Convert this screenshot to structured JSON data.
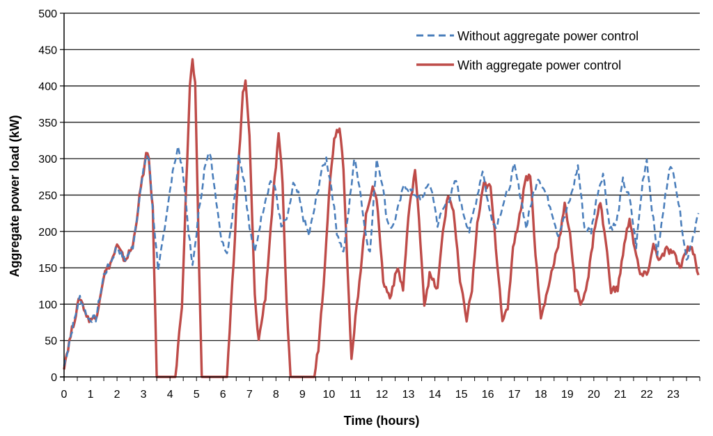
{
  "chart_data": {
    "type": "line",
    "title": "",
    "xlabel": "Time (hours)",
    "ylabel": "Aggregate power load (kW)",
    "xlim": [
      0,
      24
    ],
    "ylim": [
      0,
      500
    ],
    "x_ticks": [
      "0",
      "1",
      "2",
      "3",
      "4",
      "5",
      "6",
      "7",
      "8",
      "9",
      "10",
      "11",
      "12",
      "13",
      "14",
      "15",
      "16",
      "17",
      "18",
      "19",
      "20",
      "21",
      "22",
      "23"
    ],
    "y_ticks": [
      "0",
      "50",
      "100",
      "150",
      "200",
      "250",
      "300",
      "350",
      "400",
      "450",
      "500"
    ],
    "grid": "horizontal",
    "legend_position": "top-right",
    "series": [
      {
        "name": "Without aggregate power control",
        "style": "dashed",
        "color": "#4a7ebb",
        "points": [
          [
            0.0,
            15
          ],
          [
            0.3,
            65
          ],
          [
            0.6,
            110
          ],
          [
            0.9,
            80
          ],
          [
            1.2,
            80
          ],
          [
            1.5,
            140
          ],
          [
            1.8,
            160
          ],
          [
            2.0,
            180
          ],
          [
            2.3,
            160
          ],
          [
            2.6,
            180
          ],
          [
            2.9,
            260
          ],
          [
            3.1,
            305
          ],
          [
            3.2,
            300
          ],
          [
            3.35,
            230
          ],
          [
            3.55,
            150
          ],
          [
            3.8,
            200
          ],
          [
            4.1,
            285
          ],
          [
            4.3,
            315
          ],
          [
            4.5,
            280
          ],
          [
            4.7,
            200
          ],
          [
            4.85,
            150
          ],
          [
            5.05,
            215
          ],
          [
            5.3,
            285
          ],
          [
            5.5,
            310
          ],
          [
            5.7,
            260
          ],
          [
            5.9,
            195
          ],
          [
            6.15,
            170
          ],
          [
            6.35,
            220
          ],
          [
            6.6,
            305
          ],
          [
            6.8,
            270
          ],
          [
            7.0,
            205
          ],
          [
            7.2,
            170
          ],
          [
            7.4,
            210
          ],
          [
            7.6,
            245
          ],
          [
            7.8,
            270
          ],
          [
            8.0,
            255
          ],
          [
            8.2,
            205
          ],
          [
            8.45,
            220
          ],
          [
            8.65,
            265
          ],
          [
            8.85,
            250
          ],
          [
            9.05,
            215
          ],
          [
            9.25,
            195
          ],
          [
            9.5,
            240
          ],
          [
            9.7,
            280
          ],
          [
            9.9,
            300
          ],
          [
            10.1,
            260
          ],
          [
            10.3,
            200
          ],
          [
            10.55,
            170
          ],
          [
            10.75,
            230
          ],
          [
            10.95,
            300
          ],
          [
            11.15,
            265
          ],
          [
            11.35,
            205
          ],
          [
            11.55,
            170
          ],
          [
            11.8,
            300
          ],
          [
            12.0,
            270
          ],
          [
            12.2,
            215
          ],
          [
            12.4,
            205
          ],
          [
            12.6,
            230
          ],
          [
            12.85,
            265
          ],
          [
            13.1,
            255
          ],
          [
            13.3,
            250
          ],
          [
            13.5,
            240
          ],
          [
            13.7,
            265
          ],
          [
            13.9,
            255
          ],
          [
            14.1,
            210
          ],
          [
            14.3,
            230
          ],
          [
            14.55,
            245
          ],
          [
            14.8,
            270
          ],
          [
            15.0,
            235
          ],
          [
            15.3,
            200
          ],
          [
            15.6,
            250
          ],
          [
            15.8,
            285
          ],
          [
            16.05,
            230
          ],
          [
            16.3,
            205
          ],
          [
            16.55,
            235
          ],
          [
            16.8,
            260
          ],
          [
            17.0,
            290
          ],
          [
            17.2,
            255
          ],
          [
            17.45,
            205
          ],
          [
            17.7,
            250
          ],
          [
            17.9,
            275
          ],
          [
            18.15,
            255
          ],
          [
            18.4,
            230
          ],
          [
            18.65,
            195
          ],
          [
            18.9,
            220
          ],
          [
            19.15,
            250
          ],
          [
            19.4,
            290
          ],
          [
            19.65,
            205
          ],
          [
            19.9,
            200
          ],
          [
            20.15,
            255
          ],
          [
            20.35,
            280
          ],
          [
            20.6,
            205
          ],
          [
            20.85,
            210
          ],
          [
            21.1,
            270
          ],
          [
            21.35,
            245
          ],
          [
            21.6,
            180
          ],
          [
            21.85,
            270
          ],
          [
            22.0,
            300
          ],
          [
            22.2,
            230
          ],
          [
            22.4,
            170
          ],
          [
            22.6,
            220
          ],
          [
            22.85,
            290
          ],
          [
            23.05,
            275
          ],
          [
            23.3,
            215
          ],
          [
            23.5,
            160
          ],
          [
            23.75,
            195
          ],
          [
            23.95,
            225
          ]
        ]
      },
      {
        "name": "With aggregate power control",
        "style": "solid",
        "color": "#be4b48",
        "points": [
          [
            0.0,
            15
          ],
          [
            0.3,
            65
          ],
          [
            0.6,
            110
          ],
          [
            0.9,
            80
          ],
          [
            1.2,
            80
          ],
          [
            1.5,
            140
          ],
          [
            1.8,
            160
          ],
          [
            2.0,
            180
          ],
          [
            2.3,
            160
          ],
          [
            2.6,
            180
          ],
          [
            2.9,
            260
          ],
          [
            3.1,
            305
          ],
          [
            3.2,
            300
          ],
          [
            3.35,
            230
          ],
          [
            3.5,
            0
          ],
          [
            4.2,
            0
          ],
          [
            4.45,
            100
          ],
          [
            4.6,
            250
          ],
          [
            4.75,
            400
          ],
          [
            4.85,
            435
          ],
          [
            4.95,
            400
          ],
          [
            5.1,
            150
          ],
          [
            5.2,
            0
          ],
          [
            6.15,
            0
          ],
          [
            6.4,
            160
          ],
          [
            6.6,
            300
          ],
          [
            6.75,
            390
          ],
          [
            6.85,
            405
          ],
          [
            7.0,
            330
          ],
          [
            7.2,
            110
          ],
          [
            7.35,
            50
          ],
          [
            7.6,
            110
          ],
          [
            7.9,
            250
          ],
          [
            8.1,
            330
          ],
          [
            8.25,
            270
          ],
          [
            8.4,
            100
          ],
          [
            8.55,
            0
          ],
          [
            9.45,
            0
          ],
          [
            9.6,
            40
          ],
          [
            9.8,
            130
          ],
          [
            10.0,
            250
          ],
          [
            10.2,
            330
          ],
          [
            10.4,
            345
          ],
          [
            10.55,
            290
          ],
          [
            10.75,
            110
          ],
          [
            10.85,
            20
          ],
          [
            11.0,
            80
          ],
          [
            11.2,
            150
          ],
          [
            11.4,
            220
          ],
          [
            11.65,
            265
          ],
          [
            11.85,
            230
          ],
          [
            12.05,
            130
          ],
          [
            12.3,
            110
          ],
          [
            12.6,
            150
          ],
          [
            12.8,
            120
          ],
          [
            13.0,
            220
          ],
          [
            13.25,
            285
          ],
          [
            13.45,
            190
          ],
          [
            13.6,
            100
          ],
          [
            13.8,
            140
          ],
          [
            14.1,
            120
          ],
          [
            14.3,
            200
          ],
          [
            14.5,
            250
          ],
          [
            14.7,
            230
          ],
          [
            14.95,
            130
          ],
          [
            15.2,
            80
          ],
          [
            15.4,
            120
          ],
          [
            15.6,
            210
          ],
          [
            15.85,
            265
          ],
          [
            16.1,
            260
          ],
          [
            16.3,
            180
          ],
          [
            16.55,
            80
          ],
          [
            16.75,
            90
          ],
          [
            16.95,
            180
          ],
          [
            17.2,
            220
          ],
          [
            17.4,
            270
          ],
          [
            17.6,
            280
          ],
          [
            17.8,
            170
          ],
          [
            18.0,
            80
          ],
          [
            18.2,
            110
          ],
          [
            18.5,
            160
          ],
          [
            18.7,
            190
          ],
          [
            18.9,
            235
          ],
          [
            19.1,
            200
          ],
          [
            19.3,
            120
          ],
          [
            19.55,
            100
          ],
          [
            19.8,
            140
          ],
          [
            20.05,
            210
          ],
          [
            20.25,
            240
          ],
          [
            20.45,
            185
          ],
          [
            20.65,
            120
          ],
          [
            20.9,
            120
          ],
          [
            21.1,
            170
          ],
          [
            21.35,
            220
          ],
          [
            21.55,
            175
          ],
          [
            21.75,
            140
          ],
          [
            22.0,
            140
          ],
          [
            22.25,
            180
          ],
          [
            22.5,
            160
          ],
          [
            22.75,
            175
          ],
          [
            23.0,
            170
          ],
          [
            23.25,
            150
          ],
          [
            23.5,
            175
          ],
          [
            23.7,
            180
          ],
          [
            23.85,
            155
          ],
          [
            23.95,
            140
          ]
        ]
      }
    ]
  }
}
